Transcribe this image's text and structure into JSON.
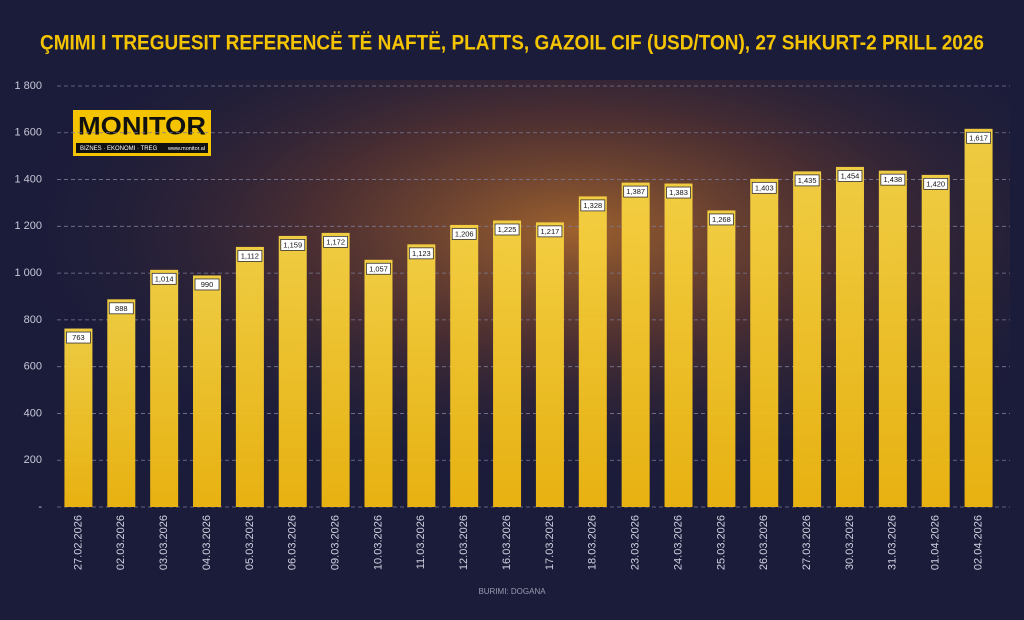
{
  "chart_data": {
    "type": "bar",
    "title": "ÇMIMI I TREGUESIT REFERENCË TË NAFTË, PLATTS, GAZOIL CIF (USD/TON),  27 SHKURT-2 PRILL 2026",
    "categories": [
      "27.02.2026",
      "02.03.2026",
      "03.03.2026",
      "04.03.2026",
      "05.03.2026",
      "06.03.2026",
      "09.03.2026",
      "10.03.2026",
      "11.03.2026",
      "12.03.2026",
      "16.03.2026",
      "17.03.2026",
      "18.03.2026",
      "23.03.2026",
      "24.03.2026",
      "25.03.2026",
      "26.03.2026",
      "27.03.2026",
      "30.03.2026",
      "31.03.2026",
      "01.04.2026",
      "02.04.2026"
    ],
    "values": [
      763,
      888,
      1014,
      990,
      1112,
      1159,
      1172,
      1057,
      1123,
      1206,
      1225,
      1217,
      1328,
      1387,
      1383,
      1268,
      1403,
      1435,
      1454,
      1438,
      1420,
      1617
    ],
    "value_labels": [
      "763",
      "888",
      "1,014",
      "990",
      "1,112",
      "1,159",
      "1,172",
      "1,057",
      "1,123",
      "1,206",
      "1,225",
      "1,217",
      "1,328",
      "1,387",
      "1,383",
      "1,268",
      "1,403",
      "1,435",
      "1,454",
      "1,438",
      "1,420",
      "1,617"
    ],
    "color": "#f6c21c",
    "ylim": [
      0,
      1800
    ],
    "yticks": [
      {
        "value": 0,
        "label": "-"
      },
      200,
      400,
      600,
      800,
      {
        "value": 1000,
        "label": "1 000"
      },
      {
        "value": 1200,
        "label": "1 200"
      },
      {
        "value": 1400,
        "label": "1 400"
      },
      {
        "value": 1600,
        "label": "1 600"
      },
      {
        "value": 1800,
        "label": "1 800"
      }
    ],
    "grid": true,
    "source": "BURIMI: DOGANA"
  },
  "logo": {
    "name": "MONITOR",
    "tagline": "BIZNES · EKONOMI · TREG",
    "url": "www.monitor.al"
  }
}
